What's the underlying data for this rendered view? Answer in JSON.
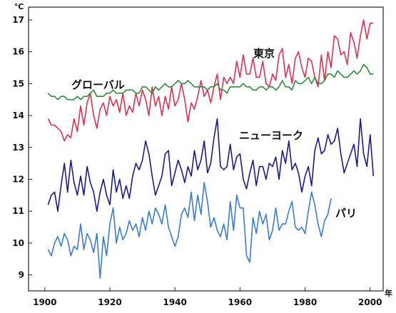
{
  "chart_data": {
    "type": "line",
    "ylabel": "℃",
    "xlabel": "年",
    "xlim": [
      1895,
      2004
    ],
    "ylim": [
      8.5,
      17.4
    ],
    "x_ticks": [
      "1900",
      "1920",
      "1940",
      "1960",
      "1980",
      "2000"
    ],
    "y_ticks": [
      "9",
      "10",
      "11",
      "12",
      "13",
      "14",
      "15",
      "16",
      "17"
    ],
    "grid": false,
    "legend": "inline labels",
    "series": [
      {
        "name": "東京",
        "color": "#e03050",
        "x": [
          1901,
          1902,
          1903,
          1904,
          1905,
          1906,
          1907,
          1908,
          1909,
          1910,
          1911,
          1912,
          1913,
          1914,
          1915,
          1916,
          1917,
          1918,
          1919,
          1920,
          1921,
          1922,
          1923,
          1924,
          1925,
          1926,
          1927,
          1928,
          1929,
          1930,
          1931,
          1932,
          1933,
          1934,
          1935,
          1936,
          1937,
          1938,
          1939,
          1940,
          1941,
          1942,
          1943,
          1944,
          1945,
          1946,
          1947,
          1948,
          1949,
          1950,
          1951,
          1952,
          1953,
          1954,
          1955,
          1956,
          1957,
          1958,
          1959,
          1960,
          1961,
          1962,
          1963,
          1964,
          1965,
          1966,
          1967,
          1968,
          1969,
          1970,
          1971,
          1972,
          1973,
          1974,
          1975,
          1976,
          1977,
          1978,
          1979,
          1980,
          1981,
          1982,
          1983,
          1984,
          1985,
          1986,
          1987,
          1988,
          1989,
          1990,
          1991,
          1992,
          1993,
          1994,
          1995,
          1996,
          1997,
          1998,
          1999,
          2000,
          2001
        ],
        "values": [
          13.9,
          13.7,
          13.7,
          13.6,
          13.5,
          13.2,
          13.4,
          13.3,
          13.9,
          13.5,
          14.3,
          13.7,
          14.4,
          14.7,
          14.0,
          13.6,
          14.2,
          14.4,
          14.0,
          14.6,
          14.3,
          14.5,
          14.1,
          14.7,
          14.0,
          14.3,
          14.1,
          14.7,
          14.3,
          14.8,
          14.5,
          14.0,
          14.9,
          14.3,
          14.6,
          14.0,
          14.6,
          14.2,
          14.9,
          14.3,
          14.5,
          15.0,
          14.5,
          13.8,
          14.4,
          14.2,
          14.6,
          15.1,
          14.6,
          14.8,
          14.4,
          14.9,
          15.3,
          14.5,
          15.2,
          15.0,
          15.2,
          15.0,
          15.7,
          15.2,
          15.9,
          15.3,
          15.3,
          15.8,
          15.2,
          15.2,
          15.7,
          15.0,
          14.9,
          15.3,
          15.1,
          15.9,
          16.1,
          15.2,
          15.6,
          15.0,
          15.8,
          16.0,
          15.5,
          15.2,
          15.8,
          15.7,
          15.2,
          14.9,
          15.9,
          15.1,
          16.0,
          15.5,
          16.5,
          16.4,
          15.9,
          16.0,
          15.6,
          16.6,
          16.3,
          15.8,
          16.5,
          17.0,
          16.4,
          16.9,
          16.9
        ],
        "label": "東京"
      },
      {
        "name": "グローバル",
        "color": "#2e8b3a",
        "x": [
          1901,
          1902,
          1903,
          1904,
          1905,
          1906,
          1907,
          1908,
          1909,
          1910,
          1911,
          1912,
          1913,
          1914,
          1915,
          1916,
          1917,
          1918,
          1919,
          1920,
          1921,
          1922,
          1923,
          1924,
          1925,
          1926,
          1927,
          1928,
          1929,
          1930,
          1931,
          1932,
          1933,
          1934,
          1935,
          1936,
          1937,
          1938,
          1939,
          1940,
          1941,
          1942,
          1943,
          1944,
          1945,
          1946,
          1947,
          1948,
          1949,
          1950,
          1951,
          1952,
          1953,
          1954,
          1955,
          1956,
          1957,
          1958,
          1959,
          1960,
          1961,
          1962,
          1963,
          1964,
          1965,
          1966,
          1967,
          1968,
          1969,
          1970,
          1971,
          1972,
          1973,
          1974,
          1975,
          1976,
          1977,
          1978,
          1979,
          1980,
          1981,
          1982,
          1983,
          1984,
          1985,
          1986,
          1987,
          1988,
          1989,
          1990,
          1991,
          1992,
          1993,
          1994,
          1995,
          1996,
          1997,
          1998,
          1999,
          2000,
          2001
        ],
        "values": [
          14.7,
          14.6,
          14.6,
          14.5,
          14.6,
          14.6,
          14.5,
          14.5,
          14.5,
          14.6,
          14.5,
          14.6,
          14.6,
          14.7,
          14.8,
          14.6,
          14.6,
          14.6,
          14.7,
          14.7,
          14.8,
          14.7,
          14.7,
          14.7,
          14.8,
          14.8,
          14.8,
          14.7,
          14.7,
          14.9,
          14.9,
          14.8,
          14.7,
          14.9,
          14.8,
          14.9,
          15.0,
          14.9,
          14.9,
          15.0,
          15.1,
          15.0,
          15.0,
          15.1,
          15.0,
          14.9,
          14.9,
          14.9,
          14.9,
          14.8,
          14.9,
          14.9,
          15.0,
          14.8,
          14.8,
          14.7,
          14.9,
          14.9,
          14.9,
          14.9,
          15.0,
          14.9,
          14.9,
          14.8,
          14.8,
          14.9,
          14.9,
          14.8,
          14.9,
          14.9,
          14.8,
          14.9,
          15.1,
          14.9,
          14.9,
          14.8,
          15.1,
          15.0,
          15.0,
          15.1,
          15.2,
          15.0,
          15.2,
          15.0,
          15.0,
          15.1,
          15.3,
          15.3,
          15.2,
          15.4,
          15.3,
          15.2,
          15.2,
          15.3,
          15.4,
          15.3,
          15.4,
          15.6,
          15.5,
          15.3,
          15.3
        ],
        "label": "グローバル"
      },
      {
        "name": "ニューヨーク",
        "color": "#1a1a8c",
        "x": [
          1901,
          1902,
          1903,
          1904,
          1905,
          1906,
          1907,
          1908,
          1909,
          1910,
          1911,
          1912,
          1913,
          1914,
          1915,
          1916,
          1917,
          1918,
          1919,
          1920,
          1921,
          1922,
          1923,
          1924,
          1925,
          1926,
          1927,
          1928,
          1929,
          1930,
          1931,
          1932,
          1933,
          1934,
          1935,
          1936,
          1937,
          1938,
          1939,
          1940,
          1941,
          1942,
          1943,
          1944,
          1945,
          1946,
          1947,
          1948,
          1949,
          1950,
          1951,
          1952,
          1953,
          1954,
          1955,
          1956,
          1957,
          1958,
          1959,
          1960,
          1961,
          1962,
          1963,
          1964,
          1965,
          1966,
          1967,
          1968,
          1969,
          1970,
          1971,
          1972,
          1973,
          1974,
          1975,
          1976,
          1977,
          1978,
          1979,
          1980,
          1981,
          1982,
          1983,
          1984,
          1985,
          1986,
          1987,
          1988,
          1989,
          1990,
          1991,
          1992,
          1993,
          1994,
          1995,
          1996,
          1997,
          1998,
          1999,
          2000,
          2001
        ],
        "values": [
          11.2,
          11.5,
          11.6,
          11.0,
          11.8,
          12.5,
          11.6,
          12.6,
          11.9,
          11.5,
          12.1,
          11.5,
          12.4,
          11.9,
          11.6,
          11.0,
          11.6,
          12.0,
          11.5,
          11.2,
          12.3,
          11.6,
          12.0,
          11.4,
          11.8,
          11.4,
          12.1,
          12.5,
          12.3,
          12.6,
          13.2,
          12.8,
          12.1,
          11.5,
          11.8,
          12.1,
          12.8,
          12.9,
          11.8,
          12.2,
          12.6,
          12.3,
          11.9,
          12.4,
          12.1,
          12.9,
          12.3,
          12.6,
          13.2,
          12.2,
          12.5,
          13.3,
          13.9,
          12.4,
          12.3,
          12.4,
          13.1,
          12.3,
          12.7,
          12.8,
          12.0,
          11.7,
          12.2,
          12.6,
          11.8,
          12.4,
          12.4,
          12.0,
          12.5,
          12.4,
          12.7,
          12.0,
          12.9,
          12.5,
          13.2,
          12.3,
          12.5,
          12.2,
          11.6,
          12.1,
          12.4,
          11.8,
          12.9,
          13.3,
          12.8,
          12.9,
          13.4,
          13.1,
          13.2,
          13.6,
          12.8,
          12.2,
          12.5,
          12.8,
          13.1,
          12.4,
          13.9,
          12.8,
          12.4,
          13.4,
          12.1
        ],
        "label": "ニューヨーク"
      },
      {
        "name": "パリ",
        "color": "#3a7bd5",
        "x": [
          1901,
          1902,
          1903,
          1904,
          1905,
          1906,
          1907,
          1908,
          1909,
          1910,
          1911,
          1912,
          1913,
          1914,
          1915,
          1916,
          1917,
          1918,
          1919,
          1920,
          1921,
          1922,
          1923,
          1924,
          1925,
          1926,
          1927,
          1928,
          1929,
          1930,
          1931,
          1932,
          1933,
          1934,
          1935,
          1936,
          1937,
          1938,
          1939,
          1940,
          1941,
          1942,
          1943,
          1944,
          1945,
          1946,
          1947,
          1948,
          1949,
          1950,
          1951,
          1952,
          1953,
          1954,
          1955,
          1956,
          1957,
          1958,
          1959,
          1960,
          1961,
          1962,
          1963,
          1964,
          1965,
          1966,
          1967,
          1968,
          1969,
          1970,
          1971,
          1972,
          1973,
          1974,
          1975,
          1976,
          1977,
          1978,
          1979,
          1980,
          1981,
          1982,
          1983,
          1984,
          1985,
          1986,
          1987,
          1988
        ],
        "values": [
          9.8,
          9.6,
          10.0,
          10.2,
          9.9,
          10.3,
          10.1,
          9.6,
          9.9,
          9.8,
          10.6,
          9.8,
          10.3,
          10.1,
          9.7,
          10.3,
          8.9,
          10.2,
          9.6,
          10.6,
          11.1,
          10.0,
          10.5,
          10.1,
          10.3,
          10.7,
          10.4,
          10.6,
          10.2,
          10.8,
          10.4,
          11.0,
          10.6,
          11.1,
          10.9,
          10.6,
          11.2,
          10.5,
          10.2,
          9.9,
          10.2,
          10.9,
          11.1,
          10.8,
          11.6,
          10.7,
          11.5,
          10.9,
          11.9,
          11.3,
          10.5,
          10.8,
          10.4,
          10.2,
          10.6,
          10.1,
          11.3,
          10.4,
          11.5,
          11.1,
          11.1,
          9.6,
          9.4,
          10.8,
          10.3,
          11.0,
          10.6,
          10.9,
          10.1,
          10.4,
          11.1,
          10.4,
          10.6,
          10.6,
          11.0,
          11.3,
          10.5,
          10.4,
          10.5,
          10.3,
          11.0,
          11.6,
          11.2,
          10.6,
          10.2,
          10.7,
          10.9,
          11.4
        ],
        "label": "パリ"
      }
    ]
  }
}
